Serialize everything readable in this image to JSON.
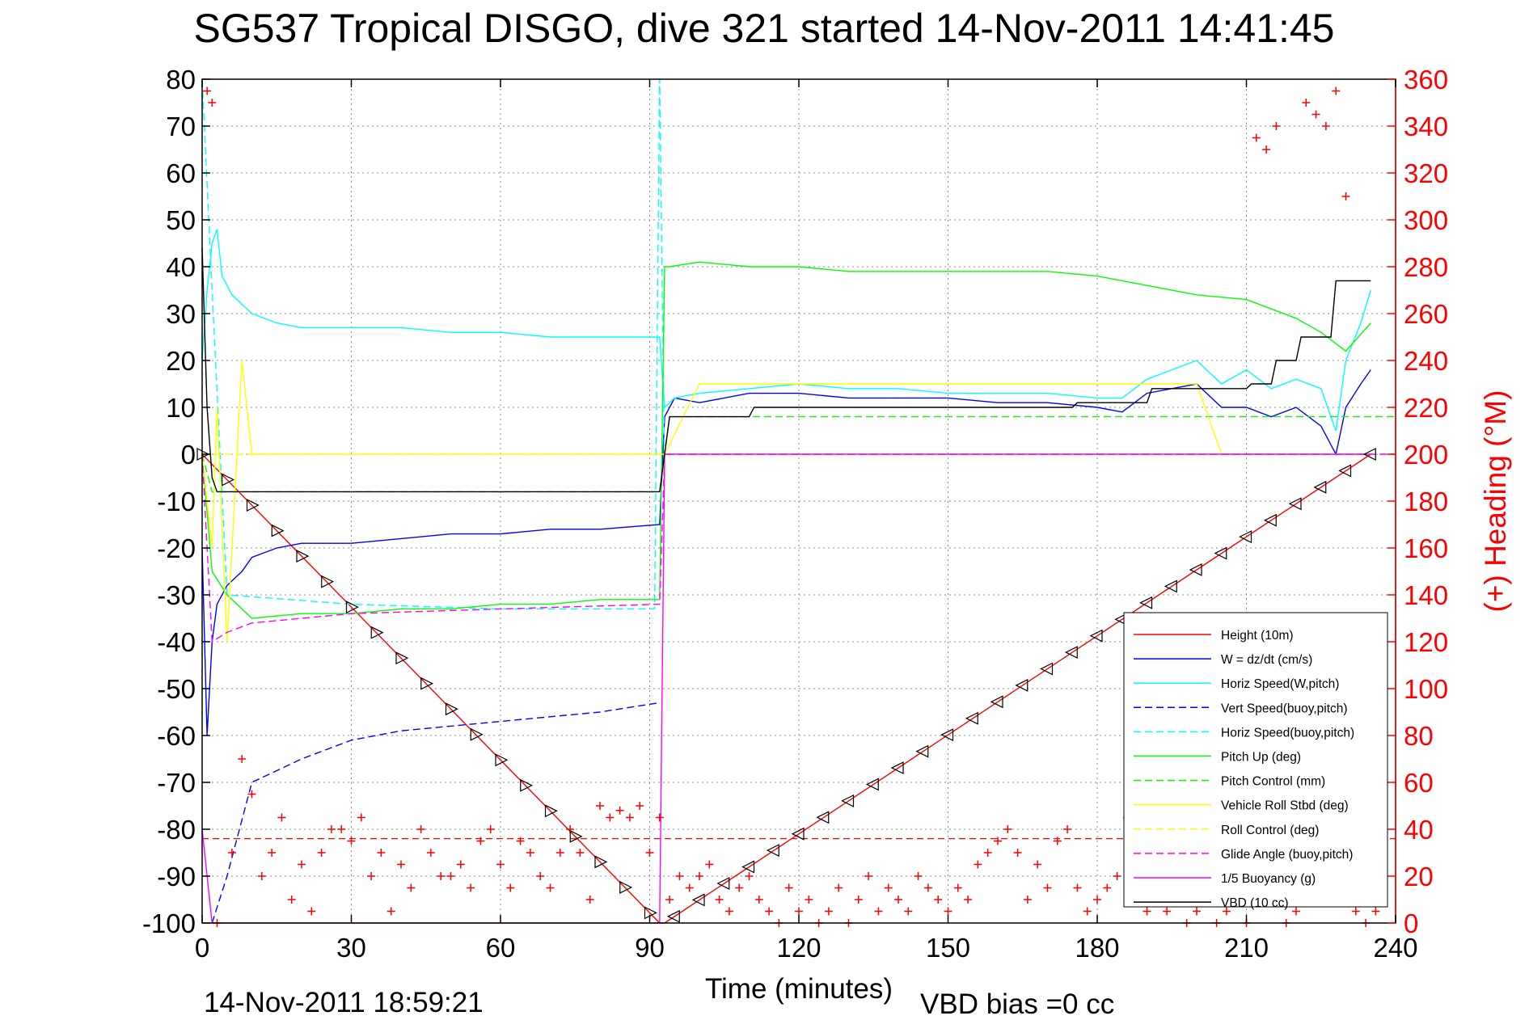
{
  "figure": {
    "title": "SG537 Tropical DISGO, dive 321 started 14-Nov-2011 14:41:45",
    "xlabel": "Time (minutes)",
    "ylabel_right": "(+) Heading (°M)",
    "footer_date": "14-Nov-2011 18:59:21",
    "footer_vbd": "VBD bias =0 cc"
  },
  "chart_data": {
    "type": "line",
    "xlim": [
      0,
      240
    ],
    "ylim_left": [
      -100,
      80
    ],
    "ylim_right": [
      0,
      360
    ],
    "x_ticks": [
      "0",
      "30",
      "60",
      "90",
      "120",
      "150",
      "180",
      "210",
      "240"
    ],
    "y_left_ticks": [
      "80",
      "70",
      "60",
      "50",
      "40",
      "30",
      "20",
      "10",
      "0",
      "-10",
      "-20",
      "-30",
      "-40",
      "-50",
      "-60",
      "-70",
      "-80",
      "-90",
      "-100"
    ],
    "y_right_ticks": [
      "360",
      "340",
      "320",
      "300",
      "280",
      "260",
      "240",
      "220",
      "200",
      "180",
      "160",
      "140",
      "120",
      "100",
      "80",
      "60",
      "40",
      "20",
      "0"
    ],
    "grid": true,
    "legend_position": "bottom-right",
    "colors": {
      "red": "#ff0000",
      "blue": "#0000ff",
      "cyan": "#00ffff",
      "green": "#00ff00",
      "yellow": "#ffff00",
      "magenta": "#ff00ff",
      "black": "#000000"
    },
    "series": [
      {
        "name": "Height (10m)",
        "color": "#ff0000",
        "style": "solid",
        "x": [
          0,
          92,
          93,
          235
        ],
        "y": [
          0,
          -100,
          -100,
          0
        ]
      },
      {
        "name": "W = dz/dt (cm/s)",
        "color": "#0000ff",
        "style": "solid",
        "x": [
          0,
          1,
          2,
          3,
          5,
          8,
          10,
          15,
          20,
          30,
          40,
          50,
          60,
          70,
          80,
          92,
          93,
          95,
          100,
          110,
          120,
          130,
          140,
          150,
          160,
          170,
          180,
          185,
          190,
          200,
          205,
          210,
          215,
          220,
          225,
          228,
          230,
          233,
          235
        ],
        "y": [
          -20,
          -60,
          -40,
          -32,
          -28,
          -25,
          -22,
          -20,
          -19,
          -19,
          -18,
          -17,
          -17,
          -16,
          -16,
          -15,
          8,
          12,
          11,
          13,
          13,
          12,
          12,
          12,
          11,
          11,
          10,
          9,
          13,
          15,
          10,
          10,
          8,
          10,
          6,
          0,
          10,
          15,
          18
        ]
      },
      {
        "name": "Horiz Speed(W,pitch)",
        "color": "#00ffff",
        "style": "solid",
        "x": [
          0,
          1,
          2,
          3,
          4,
          6,
          10,
          15,
          20,
          30,
          40,
          50,
          60,
          70,
          80,
          92,
          93,
          95,
          100,
          110,
          120,
          130,
          140,
          150,
          160,
          170,
          180,
          185,
          190,
          200,
          205,
          210,
          215,
          220,
          225,
          228,
          230,
          233,
          235
        ],
        "y": [
          20,
          35,
          45,
          48,
          38,
          34,
          30,
          28,
          27,
          27,
          27,
          26,
          26,
          25,
          25,
          25,
          10,
          12,
          13,
          14,
          15,
          14,
          14,
          13,
          13,
          13,
          12,
          12,
          16,
          20,
          15,
          18,
          14,
          16,
          14,
          5,
          20,
          28,
          35
        ]
      },
      {
        "name": "Vert Speed(buoy,pitch)",
        "color": "#0000ff",
        "style": "dashed",
        "x": [
          2,
          5,
          10,
          20,
          30,
          40,
          50,
          60,
          70,
          80,
          92
        ],
        "y": [
          -100,
          -90,
          -70,
          -65,
          -61,
          -59,
          -58,
          -57,
          -56,
          -55,
          -53
        ]
      },
      {
        "name": "Horiz Speed(buoy,pitch)",
        "color": "#00ffff",
        "style": "dashed",
        "x": [
          0,
          2,
          5,
          30,
          60,
          91,
          92,
          93
        ],
        "y": [
          80,
          35,
          -30,
          -32,
          -33,
          -33,
          80,
          -5
        ]
      },
      {
        "name": "Pitch Up (deg)",
        "color": "#00ff00",
        "style": "solid",
        "x": [
          0,
          2,
          5,
          10,
          20,
          30,
          40,
          50,
          60,
          70,
          80,
          92,
          93,
          94,
          100,
          110,
          120,
          130,
          140,
          150,
          160,
          170,
          180,
          190,
          200,
          210,
          220,
          225,
          230,
          235
        ],
        "y": [
          0,
          -25,
          -30,
          -35,
          -34,
          -34,
          -33,
          -33,
          -32,
          -32,
          -31,
          -31,
          40,
          40,
          41,
          40,
          40,
          39,
          39,
          39,
          39,
          39,
          38,
          36,
          34,
          33,
          29,
          26,
          22,
          28
        ]
      },
      {
        "name": "Pitch Control (mm)",
        "color": "#00ff00",
        "style": "dashed",
        "x": [
          0,
          2,
          92,
          94,
          240
        ],
        "y": [
          0,
          -8,
          -8,
          8,
          8
        ]
      },
      {
        "name": "Vehicle Roll Stbd (deg)",
        "color": "#ffff00",
        "style": "solid",
        "x": [
          0,
          2,
          3,
          5,
          8,
          10,
          20,
          30,
          40,
          50,
          60,
          70,
          80,
          92,
          93,
          100,
          110,
          120,
          130,
          140,
          150,
          160,
          170,
          180,
          190,
          200,
          205,
          210,
          220,
          230,
          235
        ],
        "y": [
          0,
          -20,
          10,
          -40,
          20,
          0,
          0,
          0,
          0,
          0,
          0,
          0,
          0,
          0,
          0,
          15,
          15,
          15,
          15,
          15,
          15,
          15,
          15,
          15,
          15,
          15,
          0,
          0,
          0,
          0,
          0
        ]
      },
      {
        "name": "Roll Control (deg)",
        "color": "#ffff00",
        "style": "dashed",
        "x": [
          0,
          240
        ],
        "y": [
          0,
          0
        ]
      },
      {
        "name": "Glide Angle (buoy,pitch)",
        "color": "#ff00ff",
        "style": "dashed",
        "x": [
          0,
          2,
          5,
          10,
          30,
          60,
          92,
          93,
          240
        ],
        "y": [
          0,
          -40,
          -38,
          -36,
          -34,
          -33,
          -32,
          0,
          0
        ]
      },
      {
        "name": "1/5 Buoyancy (g)",
        "color": "#ff00ff",
        "style": "solid",
        "x": [
          0,
          2,
          3,
          5,
          92,
          93,
          235
        ],
        "y": [
          -80,
          -100,
          -100,
          -100,
          -100,
          0,
          0
        ]
      },
      {
        "name": "VBD (10 cc)",
        "color": "#000000",
        "style": "solid",
        "x": [
          0,
          1,
          2,
          3,
          92,
          94,
          110,
          111,
          175,
          176,
          190,
          191,
          210,
          211,
          215,
          216,
          220,
          221,
          227,
          228,
          235
        ],
        "y": [
          44,
          10,
          -5,
          -8,
          -8,
          8,
          8,
          10,
          10,
          11,
          11,
          14,
          14,
          15,
          15,
          20,
          20,
          25,
          25,
          37,
          37
        ]
      }
    ],
    "heading_reference_line": {
      "color": "#ff0000",
      "style": "dashed",
      "y_right": 36
    },
    "heading_scatter": {
      "name": "Heading",
      "color": "#ff0000",
      "marker": "+",
      "x": [
        1,
        2,
        3,
        6,
        8,
        10,
        12,
        14,
        16,
        18,
        20,
        22,
        24,
        26,
        28,
        30,
        32,
        34,
        36,
        38,
        40,
        42,
        44,
        46,
        48,
        50,
        52,
        54,
        56,
        58,
        60,
        62,
        64,
        66,
        68,
        70,
        72,
        74,
        76,
        78,
        80,
        82,
        84,
        86,
        88,
        90,
        92,
        94,
        96,
        98,
        100,
        102,
        104,
        106,
        108,
        110,
        112,
        114,
        116,
        118,
        120,
        122,
        124,
        126,
        128,
        130,
        132,
        134,
        136,
        138,
        140,
        142,
        144,
        146,
        148,
        150,
        152,
        154,
        156,
        158,
        160,
        162,
        164,
        166,
        168,
        170,
        172,
        174,
        176,
        178,
        180,
        182,
        184,
        186,
        188,
        190,
        192,
        194,
        196,
        198,
        200,
        202,
        204,
        206,
        208,
        210,
        212,
        214,
        216,
        218,
        220,
        222,
        224,
        226,
        228,
        230,
        232,
        234,
        236
      ],
      "y": [
        355,
        350,
        0,
        30,
        70,
        55,
        20,
        30,
        45,
        10,
        25,
        5,
        30,
        40,
        40,
        35,
        45,
        20,
        30,
        5,
        25,
        15,
        40,
        30,
        20,
        20,
        25,
        15,
        35,
        40,
        25,
        15,
        35,
        30,
        20,
        15,
        30,
        40,
        30,
        10,
        50,
        45,
        48,
        45,
        50,
        30,
        45,
        10,
        20,
        15,
        20,
        25,
        10,
        5,
        15,
        20,
        10,
        5,
        0,
        15,
        5,
        10,
        0,
        5,
        15,
        0,
        10,
        20,
        5,
        15,
        10,
        5,
        20,
        15,
        10,
        5,
        15,
        10,
        25,
        30,
        35,
        40,
        30,
        10,
        25,
        15,
        35,
        40,
        15,
        5,
        10,
        15,
        20,
        45,
        40,
        5,
        10,
        5,
        10,
        0,
        5,
        10,
        0,
        5,
        10,
        0,
        335,
        330,
        340,
        0,
        5,
        350,
        345,
        340,
        355,
        310,
        5,
        0,
        5
      ]
    }
  },
  "legend_entries": [
    {
      "label": "Height (10m)",
      "color": "#ff0000",
      "style": "solid"
    },
    {
      "label": "W = dz/dt (cm/s)",
      "color": "#0000ff",
      "style": "solid"
    },
    {
      "label": "Horiz Speed(W,pitch)",
      "color": "#00ffff",
      "style": "solid"
    },
    {
      "label": "Vert Speed(buoy,pitch)",
      "color": "#0000ff",
      "style": "dashed"
    },
    {
      "label": "Horiz Speed(buoy,pitch)",
      "color": "#00ffff",
      "style": "dashed"
    },
    {
      "label": "Pitch Up (deg)",
      "color": "#00ff00",
      "style": "solid"
    },
    {
      "label": "Pitch Control (mm)",
      "color": "#00ff00",
      "style": "dashed"
    },
    {
      "label": "Vehicle Roll Stbd (deg)",
      "color": "#ffff00",
      "style": "solid"
    },
    {
      "label": "Roll Control (deg)",
      "color": "#ffff00",
      "style": "dashed"
    },
    {
      "label": "Glide Angle (buoy,pitch)",
      "color": "#ff00ff",
      "style": "dashed"
    },
    {
      "label": "1/5 Buoyancy (g)",
      "color": "#ff00ff",
      "style": "solid"
    },
    {
      "label": "VBD (10 cc)",
      "color": "#000000",
      "style": "solid"
    }
  ]
}
